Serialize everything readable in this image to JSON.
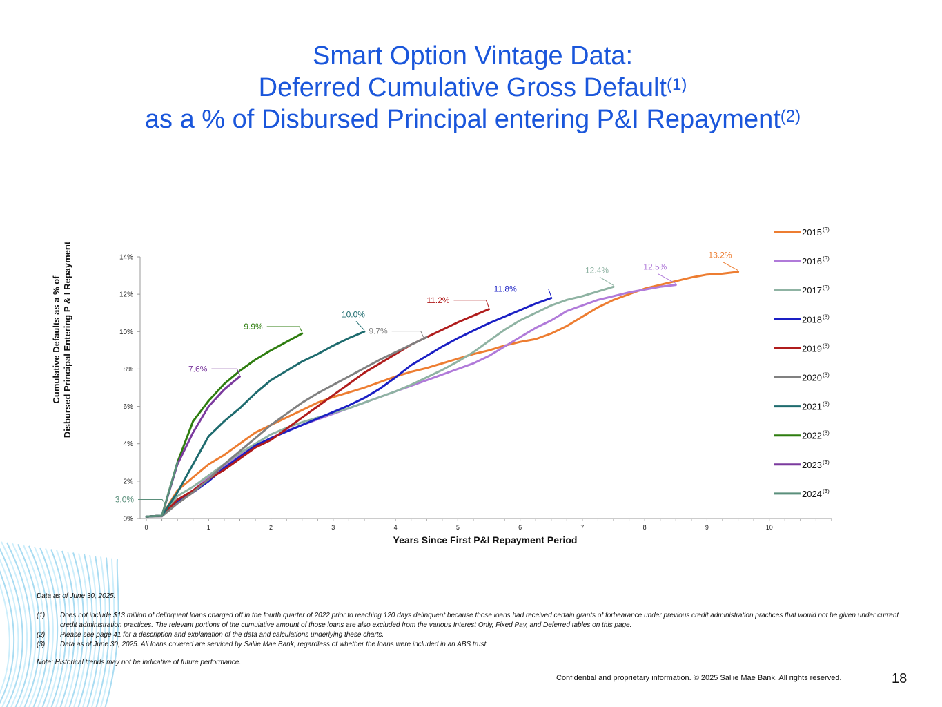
{
  "page": {
    "title_line1": "Smart Option Vintage Data:",
    "title_line2": "Deferred Cumulative Gross Default",
    "title_line2_sup": "(1)",
    "title_line3": "as a % of Disbursed Principal entering P&I Repayment",
    "title_line3_sup": "(2)",
    "data_as_of": "Data as of June 30, 2025.",
    "footnotes": [
      {
        "num": "(1)",
        "text": "Does not include $13 million of delinquent loans charged off in the fourth quarter of 2022 prior to reaching 120 days delinquent because those loans had received certain grants of forbearance under previous credit administration practices that would not be given under current credit administration practices. The relevant portions of the cumulative amount of those loans are also excluded from the various Interest Only, Fixed Pay, and Deferred tables on this page."
      },
      {
        "num": "(2)",
        "text": "Please see page 41 for a description and explanation of the data and calculations underlying these charts."
      },
      {
        "num": "(3)",
        "text": "Data as of  June 30, 2025. All loans covered are serviced by Sallie Mae Bank, regardless of whether the loans were included in an ABS trust."
      }
    ],
    "note": "Note: Historical trends may not be indicative of future performance.",
    "copyright": "Confidential and proprietary information. © 2025 Sallie Mae Bank. All rights reserved.",
    "page_number": "18"
  },
  "chart_data": {
    "type": "line",
    "xlabel": "Years Since First P&I Repayment Period",
    "ylabel_line1": "Cumulative Defaults as a % of",
    "ylabel_line2": "Disbursed Principal  Entering P & I Repayment",
    "xlim": [
      0,
      11.1
    ],
    "ylim": [
      0,
      14
    ],
    "x_ticks": [
      0,
      1,
      2,
      3,
      4,
      5,
      6,
      7,
      8,
      9,
      10
    ],
    "x_tick_labels": [
      "0",
      "1",
      "2",
      "3",
      "4",
      "5",
      "6",
      "7",
      "8",
      "9",
      "10"
    ],
    "y_ticks": [
      0,
      2,
      4,
      6,
      8,
      10,
      12,
      14
    ],
    "y_tick_labels": [
      "0%",
      "2%",
      "4%",
      "6%",
      "8%",
      "10%",
      "12%",
      "14%"
    ],
    "legend_position": "right",
    "legend_sup": "(3)",
    "series": [
      {
        "name": "2015",
        "color": "#ed7d31",
        "end_label": "13.2%",
        "x": [
          0,
          0.25,
          0.5,
          0.75,
          1,
          1.25,
          1.5,
          1.75,
          2,
          2.25,
          2.5,
          2.75,
          3,
          3.25,
          3.5,
          3.75,
          4,
          4.25,
          4.5,
          4.75,
          5,
          5.25,
          5.5,
          5.75,
          6,
          6.25,
          6.5,
          6.75,
          7,
          7.25,
          7.5,
          7.75,
          8,
          8.25,
          8.5,
          8.75,
          9,
          9.25,
          9.5
        ],
        "y": [
          0.1,
          0.15,
          1.5,
          2.2,
          2.9,
          3.4,
          4.0,
          4.6,
          5.0,
          5.4,
          5.8,
          6.2,
          6.5,
          6.75,
          7.0,
          7.3,
          7.6,
          7.85,
          8.05,
          8.3,
          8.55,
          8.8,
          9.0,
          9.25,
          9.45,
          9.6,
          9.9,
          10.3,
          10.8,
          11.3,
          11.7,
          12.0,
          12.3,
          12.5,
          12.7,
          12.9,
          13.05,
          13.1,
          13.2
        ]
      },
      {
        "name": "2016",
        "color": "#b07ad9",
        "end_label": "12.5%",
        "x": [
          0,
          0.25,
          0.5,
          0.75,
          1,
          1.25,
          1.5,
          1.75,
          2,
          2.25,
          2.5,
          2.75,
          3,
          3.25,
          3.5,
          3.75,
          4,
          4.25,
          4.5,
          4.75,
          5,
          5.25,
          5.5,
          5.75,
          6,
          6.25,
          6.5,
          6.75,
          7,
          7.25,
          7.5,
          7.75,
          8,
          8.25,
          8.5
        ],
        "y": [
          0.1,
          0.12,
          1.0,
          1.5,
          2.2,
          2.8,
          3.4,
          3.9,
          4.3,
          4.7,
          5.0,
          5.3,
          5.6,
          5.9,
          6.2,
          6.5,
          6.8,
          7.1,
          7.4,
          7.7,
          8.0,
          8.3,
          8.7,
          9.2,
          9.7,
          10.2,
          10.6,
          11.1,
          11.4,
          11.7,
          11.9,
          12.1,
          12.25,
          12.4,
          12.5
        ]
      },
      {
        "name": "2017",
        "color": "#8fb3a3",
        "end_label": "12.4%",
        "x": [
          0,
          0.25,
          0.5,
          0.75,
          1,
          1.25,
          1.5,
          1.75,
          2,
          2.25,
          2.5,
          2.75,
          3,
          3.25,
          3.5,
          3.75,
          4,
          4.25,
          4.5,
          4.75,
          5,
          5.25,
          5.5,
          5.75,
          6,
          6.25,
          6.5,
          6.75,
          7,
          7.25,
          7.5
        ],
        "y": [
          0.1,
          0.15,
          1.2,
          1.7,
          2.3,
          2.9,
          3.5,
          4.0,
          4.5,
          4.85,
          5.15,
          5.4,
          5.65,
          5.9,
          6.2,
          6.5,
          6.8,
          7.15,
          7.55,
          7.95,
          8.4,
          8.9,
          9.5,
          10.1,
          10.6,
          11.0,
          11.4,
          11.7,
          11.9,
          12.15,
          12.4
        ]
      },
      {
        "name": "2018",
        "color": "#1a1fc4",
        "end_label": "11.8%",
        "x": [
          0,
          0.25,
          0.5,
          0.75,
          1,
          1.25,
          1.5,
          1.75,
          2,
          2.25,
          2.5,
          2.75,
          3,
          3.25,
          3.5,
          3.75,
          4,
          4.25,
          4.5,
          4.75,
          5,
          5.25,
          5.5,
          5.75,
          6,
          6.25,
          6.5
        ],
        "y": [
          0.1,
          0.15,
          0.9,
          1.4,
          2.0,
          2.7,
          3.3,
          3.9,
          4.3,
          4.65,
          5.0,
          5.35,
          5.7,
          6.05,
          6.45,
          6.95,
          7.55,
          8.2,
          8.7,
          9.2,
          9.65,
          10.05,
          10.45,
          10.8,
          11.15,
          11.5,
          11.8
        ]
      },
      {
        "name": "2019",
        "color": "#b01c1c",
        "end_label": "11.2%",
        "x": [
          0,
          0.25,
          0.5,
          0.75,
          1,
          1.25,
          1.5,
          1.75,
          2,
          2.25,
          2.5,
          2.75,
          3,
          3.25,
          3.5,
          3.75,
          4,
          4.25,
          4.5,
          4.75,
          5,
          5.25,
          5.5
        ],
        "y": [
          0.1,
          0.15,
          1.0,
          1.5,
          2.1,
          2.6,
          3.2,
          3.8,
          4.2,
          4.8,
          5.4,
          6.0,
          6.6,
          7.2,
          7.8,
          8.3,
          8.8,
          9.3,
          9.7,
          10.1,
          10.5,
          10.85,
          11.2
        ]
      },
      {
        "name": "2020",
        "color": "#808080",
        "end_label": "9.7%",
        "x": [
          0,
          0.25,
          0.5,
          0.75,
          1,
          1.25,
          1.5,
          1.75,
          2,
          2.25,
          2.5,
          2.75,
          3,
          3.25,
          3.5,
          3.75,
          4,
          4.25,
          4.5
        ],
        "y": [
          0.1,
          0.12,
          0.8,
          1.4,
          2.1,
          2.9,
          3.6,
          4.3,
          5.0,
          5.6,
          6.2,
          6.7,
          7.15,
          7.6,
          8.05,
          8.5,
          8.9,
          9.3,
          9.7
        ]
      },
      {
        "name": "2021",
        "color": "#1e6b6e",
        "end_label": "10.0%",
        "x": [
          0,
          0.25,
          0.5,
          0.75,
          1,
          1.25,
          1.5,
          1.75,
          2,
          2.25,
          2.5,
          2.75,
          3,
          3.25,
          3.5
        ],
        "y": [
          0.1,
          0.15,
          1.4,
          2.9,
          4.4,
          5.2,
          5.9,
          6.7,
          7.4,
          7.9,
          8.4,
          8.8,
          9.25,
          9.65,
          10.0
        ]
      },
      {
        "name": "2022",
        "color": "#2e7d0f",
        "end_label": "9.9%",
        "x": [
          0,
          0.25,
          0.5,
          0.75,
          1,
          1.25,
          1.5,
          1.75,
          2,
          2.25,
          2.5
        ],
        "y": [
          0.1,
          0.15,
          3.0,
          5.2,
          6.3,
          7.2,
          7.9,
          8.5,
          9.0,
          9.45,
          9.9
        ]
      },
      {
        "name": "2023",
        "color": "#7b3a9e",
        "end_label": "7.6%",
        "x": [
          0,
          0.25,
          0.5,
          0.75,
          1,
          1.25,
          1.5
        ],
        "y": [
          0.1,
          0.15,
          2.9,
          4.6,
          6.0,
          6.9,
          7.6
        ]
      },
      {
        "name": "2024",
        "color": "#5a8f7b",
        "end_label": "3.0%",
        "x": [
          0,
          0.25,
          0.5
        ],
        "y": [
          0.1,
          0.15,
          3.0
        ]
      }
    ]
  }
}
